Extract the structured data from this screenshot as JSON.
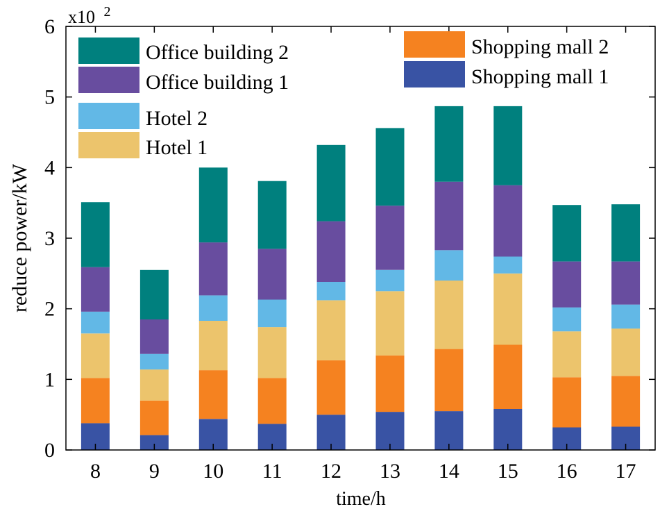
{
  "chart_data": {
    "type": "bar",
    "stacked": true,
    "title": "",
    "xlabel": "time/h",
    "ylabel": "reduce power/kW",
    "y_multiplier_label": "x10",
    "y_multiplier_exponent": "2",
    "ylim": [
      0,
      6
    ],
    "yticks": [
      0,
      1,
      2,
      3,
      4,
      5,
      6
    ],
    "categories": [
      "8",
      "9",
      "10",
      "11",
      "12",
      "13",
      "14",
      "15",
      "16",
      "17"
    ],
    "series": [
      {
        "name": "Shopping mall 1",
        "color": "#3953a4",
        "values": [
          0.38,
          0.21,
          0.44,
          0.37,
          0.5,
          0.54,
          0.55,
          0.58,
          0.32,
          0.33
        ]
      },
      {
        "name": "Shopping mall 2",
        "color": "#f58220",
        "values": [
          0.64,
          0.49,
          0.69,
          0.65,
          0.77,
          0.8,
          0.88,
          0.91,
          0.71,
          0.72
        ]
      },
      {
        "name": "Hotel 1",
        "color": "#ecc46c",
        "values": [
          0.63,
          0.44,
          0.7,
          0.72,
          0.85,
          0.91,
          0.97,
          1.01,
          0.65,
          0.67
        ]
      },
      {
        "name": "Hotel 2",
        "color": "#62b8e6",
        "values": [
          0.31,
          0.22,
          0.36,
          0.39,
          0.26,
          0.3,
          0.43,
          0.24,
          0.34,
          0.34
        ]
      },
      {
        "name": "Office building 1",
        "color": "#684d9f",
        "values": [
          0.63,
          0.49,
          0.75,
          0.72,
          0.86,
          0.91,
          0.97,
          1.01,
          0.65,
          0.61
        ]
      },
      {
        "name": "Office building 2",
        "color": "#00807e",
        "values": [
          0.92,
          0.7,
          1.06,
          0.96,
          1.08,
          1.1,
          1.07,
          1.12,
          0.8,
          0.81
        ]
      }
    ],
    "legend": [
      {
        "group": "left",
        "entries": [
          "Office building 2",
          "Office building 1",
          "Hotel 2",
          "Hotel 1"
        ]
      },
      {
        "group": "right",
        "entries": [
          "Shopping mall 2",
          "Shopping mall 1"
        ]
      }
    ]
  }
}
